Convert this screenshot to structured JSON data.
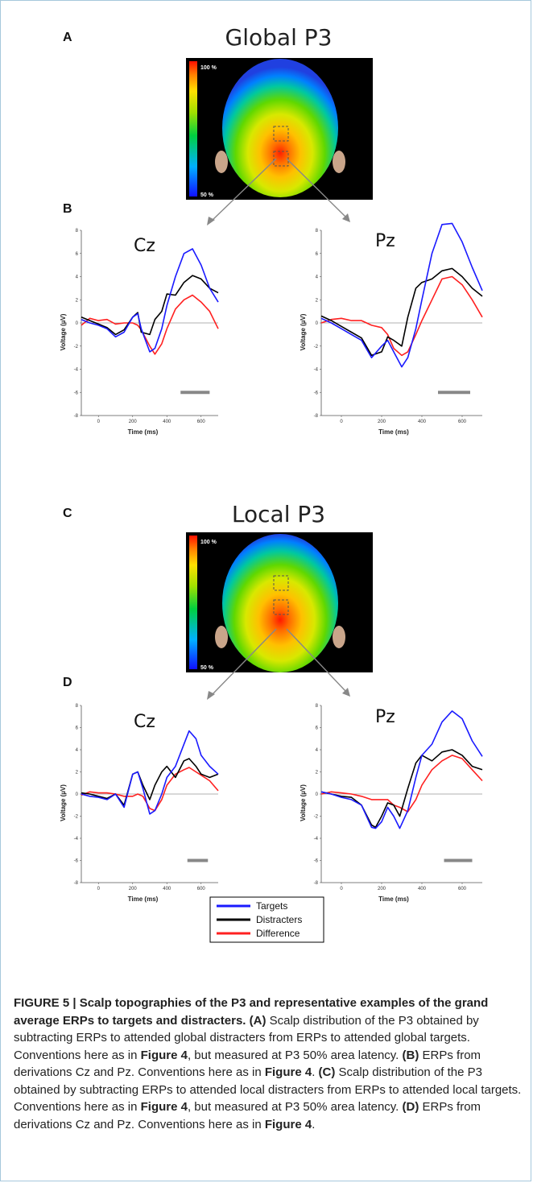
{
  "panels": {
    "a": {
      "label": "A",
      "title": "Global P3"
    },
    "b": {
      "label": "B"
    },
    "c": {
      "label": "C",
      "title": "Local P3"
    },
    "d": {
      "label": "D"
    }
  },
  "colorbar": {
    "max_label": "100 %",
    "min_label": "50 %"
  },
  "legend": {
    "items": [
      {
        "label": "Targets",
        "color": "#1a1aff"
      },
      {
        "label": "Distracters",
        "color": "#000000"
      },
      {
        "label": "Difference",
        "color": "#ff2020"
      }
    ]
  },
  "caption": {
    "figure_label": "FIGURE 5 | Scalp topographies of the P3 and representative examples of the grand average ERPs to targets and distracters.",
    "a_label": "(A)",
    "a_text": "Scalp distribution of the P3 obtained by subtracting ERPs to attended global distracters from ERPs to attended global targets. Conventions here as in",
    "a_ref": "Figure 4",
    "a_text2": ", but measured at P3 50% area latency.",
    "b_label": "(B)",
    "b_text": "ERPs from derivations Cz and Pz. Conventions here as in",
    "b_ref": "Figure 4",
    "b_text2": ".",
    "c_label": "(C)",
    "c_text": "Scalp distribution of the P3 obtained by subtracting ERPs to attended local distracters from ERPs to attended local targets. Conventions here as in",
    "c_ref": "Figure 4",
    "c_text2": ", but measured at P3 50% area latency.",
    "d_label": "(D)",
    "d_text": "ERPs from derivations Cz and Pz. Conventions here as in",
    "d_ref": "Figure 4",
    "d_text2": "."
  },
  "chart_data": [
    {
      "type": "line",
      "panel": "B",
      "electrode": "Cz",
      "xlabel": "Time (ms)",
      "ylabel": "Voltage (µV)",
      "xlim": [
        -100,
        700
      ],
      "ylim": [
        -8,
        8
      ],
      "xticks": [
        0,
        200,
        400,
        600
      ],
      "yticks": [
        -8,
        -6,
        -4,
        -2,
        0,
        2,
        4,
        6,
        8
      ],
      "bar_ms": [
        480,
        650
      ],
      "x": [
        -100,
        -50,
        0,
        50,
        100,
        150,
        200,
        230,
        250,
        300,
        330,
        370,
        400,
        450,
        500,
        550,
        600,
        650,
        700
      ],
      "series": [
        {
          "name": "Targets",
          "values": [
            0.3,
            0,
            -0.2,
            -0.5,
            -1.2,
            -0.8,
            0.5,
            0.8,
            -0.5,
            -2.5,
            -2.2,
            -0.5,
            1.5,
            4.0,
            6.0,
            6.4,
            5.0,
            3.0,
            1.8
          ]
        },
        {
          "name": "Distracters",
          "values": [
            0.5,
            0.2,
            -0.1,
            -0.4,
            -1.0,
            -0.6,
            0.5,
            0.9,
            -0.8,
            -1.0,
            0.3,
            1.0,
            2.5,
            2.4,
            3.5,
            4.1,
            3.8,
            3.0,
            2.6
          ]
        },
        {
          "name": "Difference",
          "values": [
            -0.2,
            0.4,
            0.2,
            0.3,
            -0.1,
            0,
            0,
            -0.2,
            -0.6,
            -2.0,
            -2.7,
            -1.8,
            -0.5,
            1.2,
            2.0,
            2.4,
            1.8,
            1.0,
            -0.5
          ]
        }
      ]
    },
    {
      "type": "line",
      "panel": "B",
      "electrode": "Pz",
      "xlabel": "Time (ms)",
      "ylabel": "Voltage (µV)",
      "xlim": [
        -100,
        700
      ],
      "ylim": [
        -8,
        8
      ],
      "xticks": [
        0,
        200,
        400,
        600
      ],
      "yticks": [
        -8,
        -6,
        -4,
        -2,
        0,
        2,
        4,
        6,
        8
      ],
      "bar_ms": [
        480,
        640
      ],
      "x": [
        -100,
        -50,
        0,
        50,
        100,
        150,
        200,
        230,
        260,
        300,
        330,
        370,
        400,
        450,
        500,
        550,
        600,
        650,
        700
      ],
      "series": [
        {
          "name": "Targets",
          "values": [
            0.4,
            0,
            -0.5,
            -1.0,
            -1.5,
            -3.0,
            -2.0,
            -1.5,
            -2.5,
            -3.8,
            -3.0,
            -0.5,
            2.0,
            6.0,
            8.5,
            8.6,
            7.0,
            4.8,
            2.8
          ]
        },
        {
          "name": "Distracters",
          "values": [
            0.6,
            0.2,
            -0.3,
            -0.8,
            -1.3,
            -2.8,
            -2.5,
            -1.2,
            -1.5,
            -2.0,
            0.5,
            3.0,
            3.5,
            3.8,
            4.5,
            4.7,
            4.0,
            3.0,
            2.3
          ]
        },
        {
          "name": "Difference",
          "values": [
            0,
            0.3,
            0.4,
            0.2,
            0.2,
            -0.2,
            -0.4,
            -1.0,
            -2.2,
            -2.8,
            -2.5,
            -1.0,
            0.2,
            2.0,
            3.8,
            4.0,
            3.3,
            2.0,
            0.5
          ]
        }
      ]
    },
    {
      "type": "line",
      "panel": "D",
      "electrode": "Cz",
      "xlabel": "Time (ms)",
      "ylabel": "Voltage (µV)",
      "xlim": [
        -100,
        700
      ],
      "ylim": [
        -8,
        8
      ],
      "xticks": [
        0,
        200,
        400,
        600
      ],
      "yticks": [
        -8,
        -6,
        -4,
        -2,
        0,
        2,
        4,
        6,
        8
      ],
      "bar_ms": [
        520,
        640
      ],
      "x": [
        -100,
        -50,
        0,
        50,
        100,
        150,
        200,
        230,
        260,
        300,
        330,
        370,
        400,
        450,
        500,
        530,
        570,
        600,
        650,
        700
      ],
      "series": [
        {
          "name": "Targets",
          "values": [
            0,
            -0.2,
            -0.3,
            -0.5,
            0,
            -1.2,
            1.8,
            2.0,
            0.5,
            -1.8,
            -1.5,
            0,
            1.5,
            2.5,
            4.5,
            5.7,
            5.0,
            3.5,
            2.5,
            1.8
          ]
        },
        {
          "name": "Distracters",
          "values": [
            0.1,
            0,
            -0.2,
            -0.4,
            0,
            -1.0,
            1.8,
            2.0,
            0.8,
            -0.5,
            0.8,
            2.0,
            2.5,
            1.5,
            3.0,
            3.2,
            2.5,
            1.8,
            1.5,
            1.8
          ]
        },
        {
          "name": "Difference",
          "values": [
            -0.1,
            0.2,
            0.1,
            0.1,
            0,
            -0.2,
            -0.2,
            0,
            -0.2,
            -1.3,
            -1.5,
            -0.5,
            0.8,
            1.8,
            2.2,
            2.4,
            2.0,
            1.7,
            1.2,
            0.3
          ]
        }
      ]
    },
    {
      "type": "line",
      "panel": "D",
      "electrode": "Pz",
      "xlabel": "Time (ms)",
      "ylabel": "Voltage (µV)",
      "xlim": [
        -100,
        700
      ],
      "ylim": [
        -8,
        8
      ],
      "xticks": [
        0,
        200,
        400,
        600
      ],
      "yticks": [
        -8,
        -6,
        -4,
        -2,
        0,
        2,
        4,
        6,
        8
      ],
      "bar_ms": [
        510,
        650
      ],
      "x": [
        -100,
        -50,
        0,
        50,
        100,
        150,
        170,
        200,
        230,
        260,
        290,
        330,
        370,
        400,
        450,
        500,
        550,
        600,
        650,
        700
      ],
      "series": [
        {
          "name": "Targets",
          "values": [
            0.2,
            0,
            -0.3,
            -0.5,
            -1.0,
            -3.0,
            -3.1,
            -2.5,
            -1.2,
            -2.0,
            -3.1,
            -1.5,
            1.5,
            3.5,
            4.5,
            6.5,
            7.5,
            6.8,
            4.8,
            3.4
          ]
        },
        {
          "name": "Distracters",
          "values": [
            0.2,
            0,
            -0.2,
            -0.3,
            -1.0,
            -2.8,
            -3.0,
            -2.0,
            -0.8,
            -1.0,
            -2.0,
            0.5,
            2.8,
            3.5,
            3.0,
            3.8,
            4.0,
            3.5,
            2.5,
            2.2
          ]
        },
        {
          "name": "Difference",
          "values": [
            0,
            0.2,
            0.1,
            0,
            -0.2,
            -0.5,
            -0.5,
            -0.5,
            -0.5,
            -1.0,
            -1.2,
            -1.6,
            -0.5,
            0.8,
            2.2,
            3.0,
            3.5,
            3.2,
            2.2,
            1.2
          ]
        }
      ]
    }
  ]
}
